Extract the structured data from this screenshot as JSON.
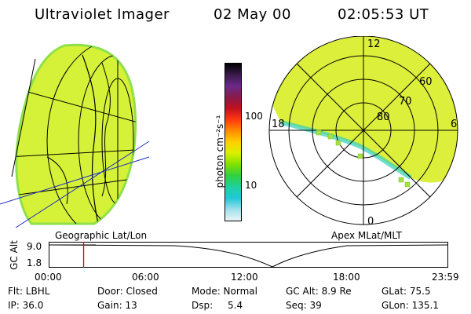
{
  "header": {
    "instrument": "Ultraviolet Imager",
    "date": "02 May 00",
    "time": "02:05:53 UT"
  },
  "colorbar": {
    "unit_label": "photon cm⁻²s⁻¹",
    "ticks": [
      "100",
      "10"
    ],
    "colors": [
      "#000000",
      "#3a1a4a",
      "#6a2a8a",
      "#8a1a4a",
      "#c01020",
      "#ff3a10",
      "#ff8c00",
      "#ffd000",
      "#d8f000",
      "#80e000",
      "#30d040",
      "#20d0a0",
      "#20c8d8",
      "#a0e0ec",
      "#e8f4f8"
    ]
  },
  "left_map": {
    "caption": "Geographic Lat/Lon"
  },
  "polar_plot": {
    "caption": "Apex MLat/MLT",
    "mlt_labels": {
      "top": "12",
      "left": "18",
      "right": "6",
      "bottom": "0"
    },
    "lat_labels": [
      "60",
      "70",
      "80"
    ]
  },
  "altitude_track": {
    "axis_title": "GC Alt",
    "y_ticks": [
      "9.0",
      "1.8"
    ],
    "x_ticks": [
      "00:00",
      "06:00",
      "12:00",
      "18:00",
      "23:59"
    ],
    "current_marker_hours": 2.1
  },
  "info": {
    "filter": "Flt: LBHL",
    "ip": "IP: 36.0",
    "door": "Door: Closed",
    "gain": "Gain: 13",
    "mode": "Mode: Normal",
    "dsp_label": "Dsp:",
    "dsp_value": "5.4",
    "gc_alt": "GC Alt: 8.9 Re",
    "seq": "Seq: 39",
    "glat": "GLat: 75.5",
    "glon": "GLon: 135.1"
  }
}
